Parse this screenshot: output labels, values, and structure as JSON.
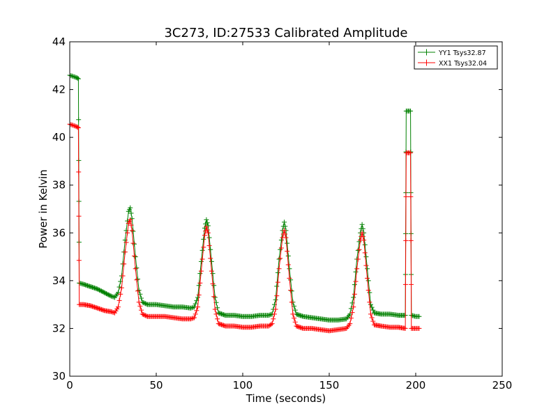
{
  "chart_data": {
    "type": "line",
    "title": "3C273, ID:27533 Calibrated Amplitude",
    "xlabel": "Time (seconds)",
    "ylabel": "Power in Kelvin",
    "xlim": [
      0,
      250
    ],
    "ylim": [
      30,
      44
    ],
    "xticks": [
      0,
      50,
      100,
      150,
      200,
      250
    ],
    "yticks": [
      30,
      32,
      34,
      36,
      38,
      40,
      42,
      44
    ],
    "grid": false,
    "legend_position": "top-right",
    "series": [
      {
        "name": "YY1 Tsys32.87",
        "color": "#008000",
        "marker": "+",
        "points": [
          [
            0,
            42.6
          ],
          [
            2,
            42.55
          ],
          [
            4,
            42.5
          ],
          [
            5,
            42.45
          ],
          [
            5.5,
            33.9
          ],
          [
            8,
            33.85
          ],
          [
            12,
            33.75
          ],
          [
            16,
            33.65
          ],
          [
            20,
            33.5
          ],
          [
            24,
            33.35
          ],
          [
            26,
            33.3
          ],
          [
            28,
            33.5
          ],
          [
            30,
            34.2
          ],
          [
            32,
            35.7
          ],
          [
            34,
            36.9
          ],
          [
            35,
            37.05
          ],
          [
            36,
            36.6
          ],
          [
            38,
            35.0
          ],
          [
            40,
            33.6
          ],
          [
            42,
            33.1
          ],
          [
            45,
            33.0
          ],
          [
            50,
            33.0
          ],
          [
            55,
            32.95
          ],
          [
            60,
            32.9
          ],
          [
            65,
            32.9
          ],
          [
            70,
            32.85
          ],
          [
            72,
            32.9
          ],
          [
            74,
            33.3
          ],
          [
            76,
            34.8
          ],
          [
            78,
            36.2
          ],
          [
            79,
            36.55
          ],
          [
            80,
            36.3
          ],
          [
            82,
            34.8
          ],
          [
            84,
            33.3
          ],
          [
            86,
            32.65
          ],
          [
            90,
            32.55
          ],
          [
            95,
            32.55
          ],
          [
            100,
            32.5
          ],
          [
            105,
            32.5
          ],
          [
            110,
            32.55
          ],
          [
            115,
            32.55
          ],
          [
            117,
            32.6
          ],
          [
            119,
            33.2
          ],
          [
            121,
            34.9
          ],
          [
            123,
            36.1
          ],
          [
            124,
            36.45
          ],
          [
            125,
            36.1
          ],
          [
            127,
            34.5
          ],
          [
            129,
            33.1
          ],
          [
            131,
            32.6
          ],
          [
            135,
            32.5
          ],
          [
            140,
            32.45
          ],
          [
            145,
            32.4
          ],
          [
            150,
            32.35
          ],
          [
            155,
            32.35
          ],
          [
            160,
            32.4
          ],
          [
            162,
            32.6
          ],
          [
            164,
            33.3
          ],
          [
            166,
            34.9
          ],
          [
            168,
            36.0
          ],
          [
            169,
            36.35
          ],
          [
            170,
            36.0
          ],
          [
            172,
            34.5
          ],
          [
            174,
            33.0
          ],
          [
            176,
            32.65
          ],
          [
            180,
            32.6
          ],
          [
            185,
            32.6
          ],
          [
            190,
            32.55
          ],
          [
            194,
            32.55
          ],
          [
            194.5,
            41.1
          ],
          [
            197,
            41.1
          ],
          [
            197.5,
            32.55
          ],
          [
            200,
            32.5
          ],
          [
            202,
            32.5
          ]
        ]
      },
      {
        "name": "XX1 Tsys32.04",
        "color": "#ff0000",
        "marker": "+",
        "points": [
          [
            0,
            40.55
          ],
          [
            2,
            40.5
          ],
          [
            4,
            40.45
          ],
          [
            5,
            40.4
          ],
          [
            5.5,
            33.0
          ],
          [
            8,
            33.0
          ],
          [
            12,
            32.95
          ],
          [
            16,
            32.85
          ],
          [
            20,
            32.75
          ],
          [
            24,
            32.7
          ],
          [
            26,
            32.65
          ],
          [
            28,
            32.9
          ],
          [
            30,
            33.7
          ],
          [
            32,
            35.2
          ],
          [
            34,
            36.4
          ],
          [
            35,
            36.55
          ],
          [
            36,
            36.1
          ],
          [
            38,
            34.5
          ],
          [
            40,
            33.1
          ],
          [
            42,
            32.6
          ],
          [
            45,
            32.5
          ],
          [
            50,
            32.5
          ],
          [
            55,
            32.5
          ],
          [
            60,
            32.45
          ],
          [
            65,
            32.4
          ],
          [
            70,
            32.4
          ],
          [
            72,
            32.45
          ],
          [
            74,
            32.9
          ],
          [
            76,
            34.4
          ],
          [
            78,
            35.9
          ],
          [
            79,
            36.25
          ],
          [
            80,
            36.0
          ],
          [
            82,
            34.4
          ],
          [
            84,
            32.8
          ],
          [
            86,
            32.2
          ],
          [
            90,
            32.1
          ],
          [
            95,
            32.1
          ],
          [
            100,
            32.05
          ],
          [
            105,
            32.05
          ],
          [
            110,
            32.1
          ],
          [
            115,
            32.1
          ],
          [
            117,
            32.2
          ],
          [
            119,
            32.8
          ],
          [
            121,
            34.5
          ],
          [
            123,
            35.8
          ],
          [
            124,
            36.1
          ],
          [
            125,
            35.8
          ],
          [
            127,
            34.1
          ],
          [
            129,
            32.6
          ],
          [
            131,
            32.1
          ],
          [
            135,
            32.0
          ],
          [
            140,
            32.0
          ],
          [
            145,
            31.95
          ],
          [
            150,
            31.9
          ],
          [
            155,
            31.95
          ],
          [
            160,
            32.0
          ],
          [
            162,
            32.2
          ],
          [
            164,
            32.9
          ],
          [
            166,
            34.5
          ],
          [
            168,
            35.7
          ],
          [
            169,
            36.0
          ],
          [
            170,
            35.7
          ],
          [
            172,
            34.1
          ],
          [
            174,
            32.6
          ],
          [
            176,
            32.15
          ],
          [
            180,
            32.1
          ],
          [
            185,
            32.05
          ],
          [
            190,
            32.05
          ],
          [
            194,
            32.0
          ],
          [
            194.5,
            39.35
          ],
          [
            197,
            39.35
          ],
          [
            197.5,
            32.0
          ],
          [
            200,
            32.0
          ],
          [
            202,
            32.0
          ]
        ]
      }
    ]
  }
}
